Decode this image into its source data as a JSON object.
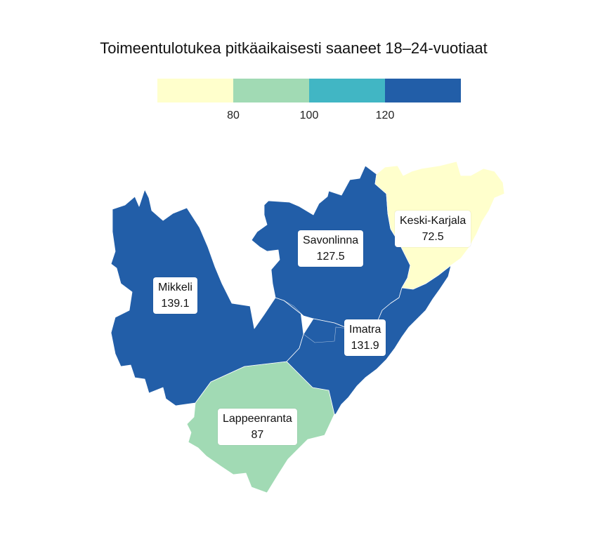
{
  "title": "Toimeentulotukea pitkäaikaisesti saaneet 18–24-vuotiaat",
  "legend": {
    "bins": [
      {
        "color": "#ffffcc"
      },
      {
        "color": "#a1dab4"
      },
      {
        "color": "#41b6c4"
      },
      {
        "color": "#225ea8"
      }
    ],
    "ticks": [
      "80",
      "100",
      "120"
    ]
  },
  "regions": [
    {
      "id": "mikkeli",
      "name": "Mikkeli",
      "value": "139.1",
      "color": "#225ea8"
    },
    {
      "id": "savonlinna",
      "name": "Savonlinna",
      "value": "127.5",
      "color": "#225ea8"
    },
    {
      "id": "keski-karjala",
      "name": "Keski-Karjala",
      "value": "72.5",
      "color": "#ffffcc"
    },
    {
      "id": "imatra",
      "name": "Imatra",
      "value": "131.9",
      "color": "#225ea8"
    },
    {
      "id": "lappeenranta",
      "name": "Lappeenranta",
      "value": "87",
      "color": "#a1dab4"
    }
  ]
}
